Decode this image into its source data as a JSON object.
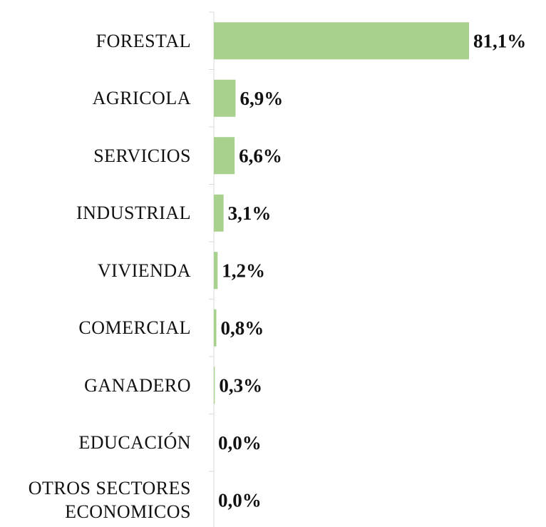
{
  "chart_data": {
    "type": "bar",
    "orientation": "horizontal",
    "categories": [
      "FORESTAL",
      "AGRICOLA",
      "SERVICIOS",
      "INDUSTRIAL",
      "VIVIENDA",
      "COMERCIAL",
      "GANADERO",
      "EDUCACIÓN",
      "OTROS SECTORES ECONOMICOS"
    ],
    "values": [
      81.1,
      6.9,
      6.6,
      3.1,
      1.2,
      0.8,
      0.3,
      0.0,
      0.0
    ],
    "value_labels": [
      "81,1%",
      "6,9%",
      "6,6%",
      "3,1%",
      "1,2%",
      "0,8%",
      "0,3%",
      "0,0%",
      "0,0%"
    ],
    "color": "#a9d18e"
  }
}
